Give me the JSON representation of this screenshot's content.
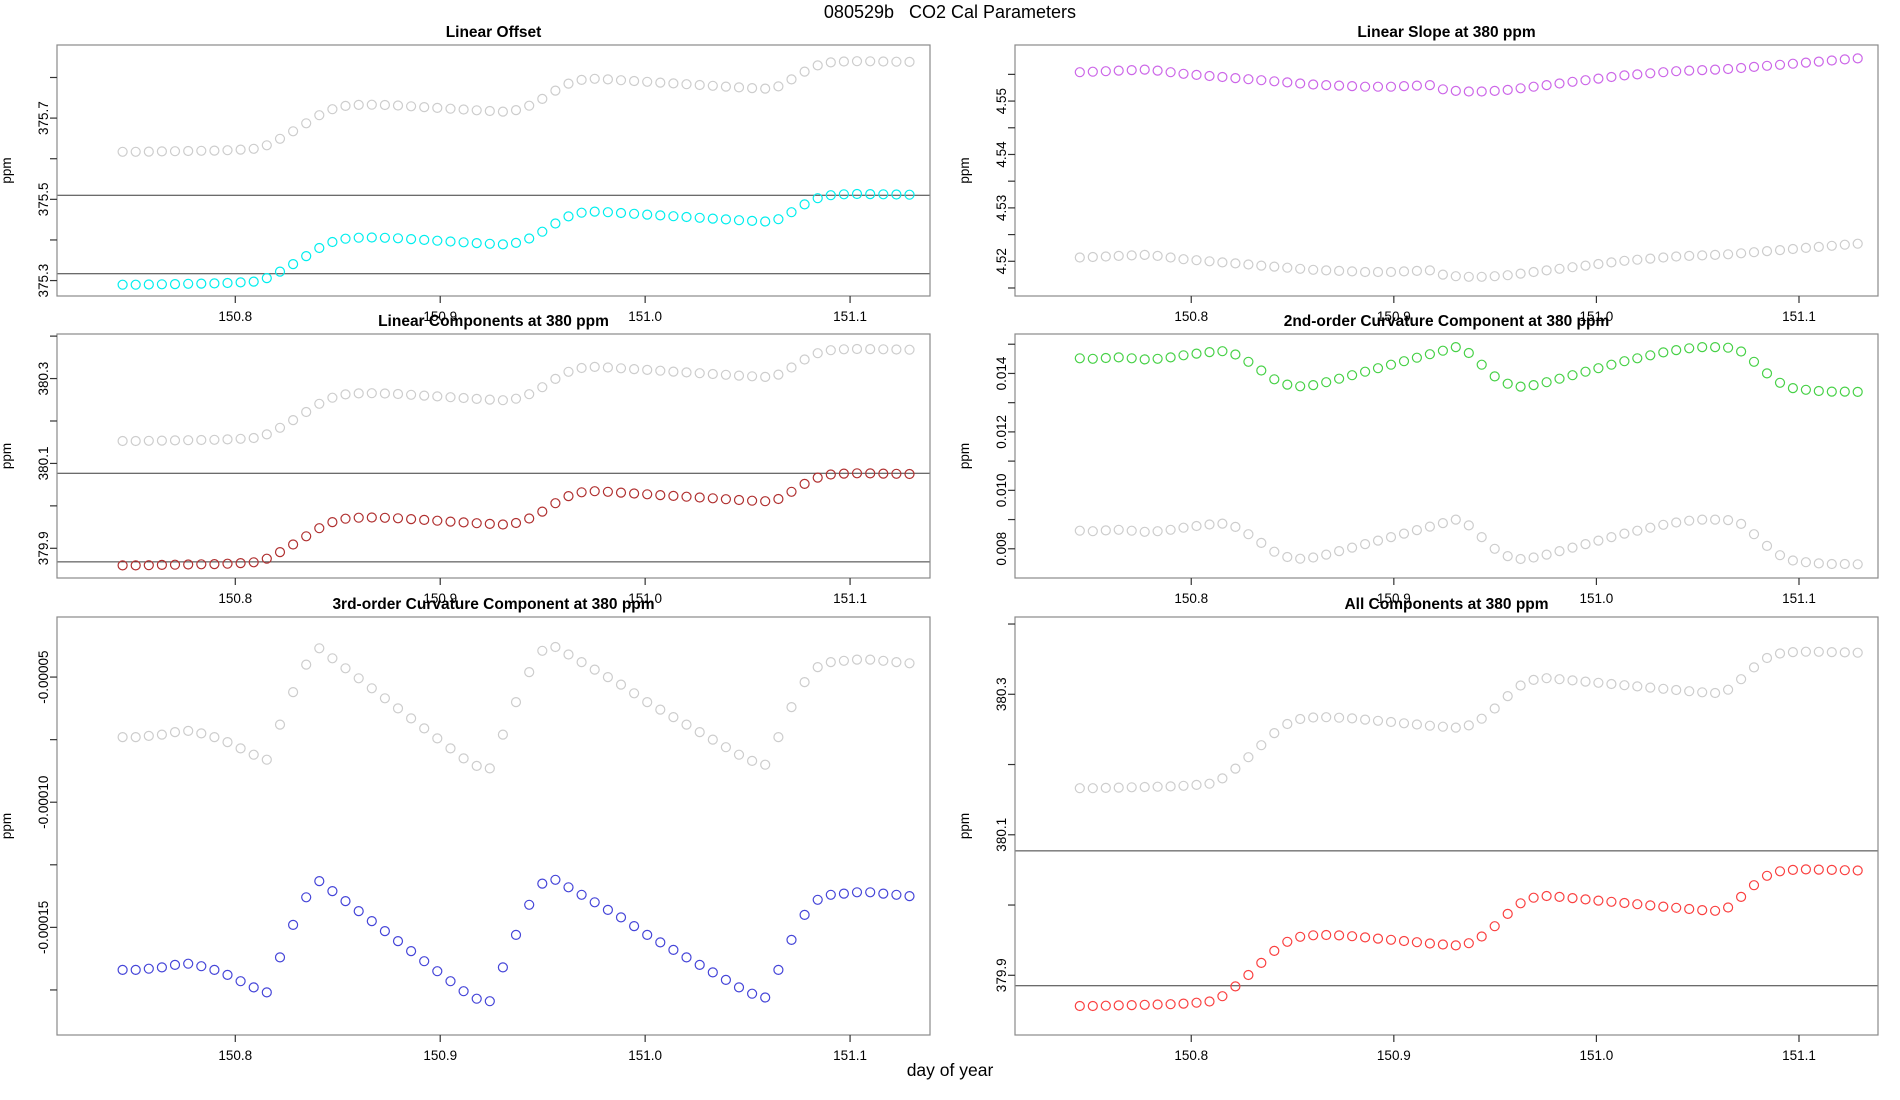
{
  "figure": {
    "title": "080529b   CO2 Cal Parameters",
    "xlabel": "day of year",
    "background": "#ffffff"
  },
  "colors": {
    "gray": "#cdcdcd",
    "cyan": "#00eeee",
    "violet": "#cc66e8",
    "darkred": "#b03030",
    "green": "#47d147",
    "blue": "#4545d8",
    "red": "#fa4040",
    "box": "#8a8a8a",
    "hline": "#3a3a3a",
    "tickmark": "#333333",
    "text": "#000000"
  },
  "chart_data": {
    "type": "scatter",
    "marker": "open-circle",
    "x": {
      "start": 150.745,
      "step": 0.0064,
      "n": 61,
      "xlim": [
        150.713,
        151.139
      ],
      "xtick_values": [
        150.8,
        150.9,
        151.0,
        151.1
      ],
      "xtick_labels": [
        "150.8",
        "150.9",
        "151.0",
        "151.1"
      ]
    },
    "shapes": {
      "step": [
        0.02,
        0.02,
        0.022,
        0.024,
        0.026,
        0.028,
        0.03,
        0.032,
        0.036,
        0.042,
        0.05,
        0.085,
        0.15,
        0.225,
        0.305,
        0.385,
        0.445,
        0.478,
        0.488,
        0.49,
        0.487,
        0.482,
        0.474,
        0.466,
        0.458,
        0.45,
        0.442,
        0.434,
        0.427,
        0.421,
        0.436,
        0.48,
        0.548,
        0.63,
        0.7,
        0.737,
        0.748,
        0.742,
        0.734,
        0.726,
        0.718,
        0.71,
        0.702,
        0.694,
        0.686,
        0.678,
        0.67,
        0.662,
        0.655,
        0.65,
        0.672,
        0.742,
        0.82,
        0.882,
        0.912,
        0.921,
        0.924,
        0.923,
        0.921,
        0.919,
        0.917
      ],
      "slope": [
        4.5554,
        4.5555,
        4.5556,
        4.5557,
        4.5558,
        4.5559,
        4.5557,
        4.5554,
        4.5551,
        4.5549,
        4.5547,
        4.5545,
        4.5543,
        4.5541,
        4.5539,
        4.5537,
        4.5535,
        4.5533,
        4.5531,
        4.553,
        4.5529,
        4.5528,
        4.5527,
        4.5527,
        4.5527,
        4.5528,
        4.5529,
        4.553,
        4.5522,
        4.5519,
        4.5518,
        4.5518,
        4.5519,
        4.5521,
        4.5524,
        4.5527,
        4.553,
        4.5533,
        4.5536,
        4.5539,
        4.5542,
        4.5545,
        4.5548,
        4.555,
        4.5552,
        4.5554,
        4.5556,
        4.5557,
        4.5558,
        4.5559,
        4.556,
        4.5562,
        4.5564,
        4.5566,
        4.5568,
        4.557,
        4.5572,
        4.5574,
        4.5576,
        4.5578,
        4.558
      ],
      "curv2": [
        0.01452,
        0.0145,
        0.01453,
        0.01455,
        0.01452,
        0.01448,
        0.0145,
        0.01455,
        0.01462,
        0.01468,
        0.01473,
        0.01476,
        0.01465,
        0.0144,
        0.0141,
        0.0138,
        0.01362,
        0.01356,
        0.0136,
        0.0137,
        0.01382,
        0.01394,
        0.01406,
        0.01418,
        0.0143,
        0.01442,
        0.01454,
        0.01466,
        0.01478,
        0.0149,
        0.0147,
        0.0143,
        0.0139,
        0.01365,
        0.01355,
        0.0136,
        0.0137,
        0.01382,
        0.01394,
        0.01406,
        0.01418,
        0.0143,
        0.01442,
        0.01452,
        0.01462,
        0.01472,
        0.0148,
        0.01486,
        0.0149,
        0.0149,
        0.01488,
        0.01475,
        0.0144,
        0.014,
        0.01368,
        0.0135,
        0.01344,
        0.0134,
        0.01338,
        0.01338,
        0.01337
      ],
      "curv3e5": [
        -7.4,
        -7.4,
        -7.35,
        -7.3,
        -7.2,
        -7.15,
        -7.25,
        -7.4,
        -7.6,
        -7.85,
        -8.1,
        -8.3,
        -6.9,
        -5.6,
        -4.5,
        -3.85,
        -4.25,
        -4.65,
        -5.05,
        -5.45,
        -5.85,
        -6.25,
        -6.65,
        -7.05,
        -7.45,
        -7.85,
        -8.25,
        -8.55,
        -8.65,
        -7.3,
        -6.0,
        -4.8,
        -3.95,
        -3.8,
        -4.1,
        -4.4,
        -4.7,
        -5.0,
        -5.3,
        -5.65,
        -6.0,
        -6.3,
        -6.6,
        -6.9,
        -7.2,
        -7.5,
        -7.8,
        -8.1,
        -8.35,
        -8.5,
        -7.4,
        -6.2,
        -5.2,
        -4.6,
        -4.4,
        -4.35,
        -4.3,
        -4.3,
        -4.35,
        -4.4,
        -4.45
      ]
    },
    "panels": [
      {
        "id": "linear-offset",
        "title": "Linear Offset",
        "ylabel": "ppm",
        "ylim": [
          375.262,
          375.88
        ],
        "yticks": [
          {
            "v": 375.3,
            "label": "375.3"
          },
          {
            "v": 375.5,
            "label": "375.5"
          },
          {
            "v": 375.7,
            "label": "375.7"
          }
        ],
        "yticks_minor": [
          375.4,
          375.6,
          375.8
        ],
        "hlines": [
          375.317,
          375.51
        ],
        "series": [
          {
            "name": "reference-gray",
            "color": "gray",
            "shape": "step",
            "scale": 0.247,
            "offset": 375.612
          },
          {
            "name": "offset-cyan",
            "color": "cyan",
            "shape": "step",
            "scale": 0.247,
            "offset": 375.285
          }
        ]
      },
      {
        "id": "linear-slope",
        "title": "Linear Slope at 380 ppm",
        "ylabel": "ppm",
        "ylim": [
          4.5135,
          4.5605
        ],
        "yticks": [
          {
            "v": 4.52,
            "label": "4.52"
          },
          {
            "v": 4.53,
            "label": "4.53"
          },
          {
            "v": 4.54,
            "label": "4.54"
          },
          {
            "v": 4.55,
            "label": "4.55"
          }
        ],
        "yticks_minor": [
          4.515,
          4.525,
          4.535,
          4.545,
          4.555
        ],
        "hlines": [],
        "series": [
          {
            "name": "slope-violet",
            "color": "violet",
            "shape": "slope",
            "scale": 1,
            "offset": 0
          },
          {
            "name": "reference-gray",
            "color": "gray",
            "shape": "slope",
            "scale": 1,
            "offset": -0.0347
          }
        ]
      },
      {
        "id": "linear-components",
        "title": "Linear Components at 380 ppm",
        "ylabel": "ppm",
        "ylim": [
          379.83,
          380.405
        ],
        "yticks": [
          {
            "v": 379.9,
            "label": "379.9"
          },
          {
            "v": 380.1,
            "label": "380.1"
          },
          {
            "v": 380.3,
            "label": "380.3"
          }
        ],
        "yticks_minor": [
          380.0,
          380.2,
          380.4
        ],
        "hlines": [
          379.868,
          380.077
        ],
        "series": [
          {
            "name": "reference-gray",
            "color": "gray",
            "shape": "step",
            "scale": 0.24,
            "offset": 380.148
          },
          {
            "name": "linear-darkred",
            "color": "darkred",
            "shape": "step",
            "scale": 0.24,
            "offset": 379.855
          }
        ]
      },
      {
        "id": "curvature-2nd-order",
        "title": "2nd-order Curvature Component at 380 ppm",
        "ylabel": "ppm",
        "ylim": [
          0.007,
          0.01535
        ],
        "yticks": [
          {
            "v": 0.008,
            "label": "0.008"
          },
          {
            "v": 0.01,
            "label": "0.010"
          },
          {
            "v": 0.012,
            "label": "0.012"
          },
          {
            "v": 0.014,
            "label": "0.014"
          }
        ],
        "yticks_minor": [
          0.009,
          0.011,
          0.013,
          0.015
        ],
        "hlines": [],
        "series": [
          {
            "name": "curv2-green",
            "color": "green",
            "shape": "curv2",
            "scale": 1,
            "offset": 0
          },
          {
            "name": "reference-gray",
            "color": "gray",
            "shape": "curv2",
            "scale": 1,
            "offset": -0.0059
          }
        ]
      },
      {
        "id": "curvature-3rd-order",
        "title": "3rd-order Curvature Component at 380 ppm",
        "ylabel": "ppm",
        "ylim": [
          -0.000193,
          -2.6e-05
        ],
        "yticks": [
          {
            "v": -0.00015,
            "label": "-0.00015"
          },
          {
            "v": -0.0001,
            "label": "-0.00010"
          },
          {
            "v": -5e-05,
            "label": "-0.00005"
          }
        ],
        "yticks_minor": [
          -0.000175,
          -0.000125,
          -7.5e-05
        ],
        "hlines": [],
        "series": [
          {
            "name": "reference-gray",
            "color": "gray",
            "shape": "curv3e5",
            "scale": 1e-05,
            "offset": 0
          },
          {
            "name": "curv3-blue",
            "color": "blue",
            "shape": "curv3e5",
            "scale": 1e-05,
            "offset": -9.3e-05
          }
        ]
      },
      {
        "id": "all-components",
        "title": "All Components at 380 ppm",
        "ylabel": "ppm",
        "ylim": [
          379.815,
          380.41
        ],
        "yticks": [
          {
            "v": 379.9,
            "label": "379.9"
          },
          {
            "v": 380.1,
            "label": "380.1"
          },
          {
            "v": 380.3,
            "label": "380.3"
          }
        ],
        "yticks_minor": [
          380.0,
          380.2,
          380.4
        ],
        "hlines": [
          379.885,
          380.077
        ],
        "series": [
          {
            "name": "reference-gray",
            "color": "gray",
            "shape": "step",
            "scale": 0.215,
            "offset": 380.162
          },
          {
            "name": "all-red",
            "color": "red",
            "shape": "step",
            "scale": 0.215,
            "offset": 379.852
          }
        ]
      }
    ]
  }
}
